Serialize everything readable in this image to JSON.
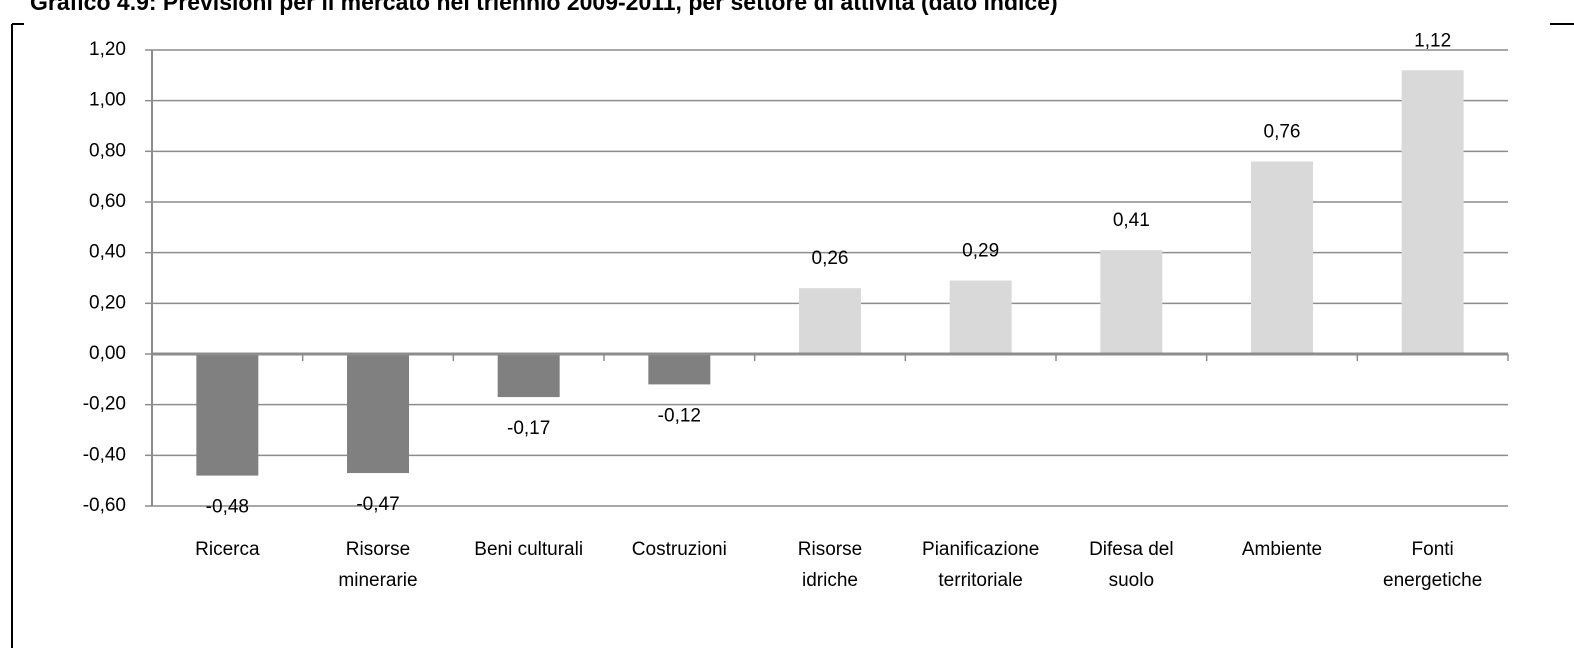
{
  "chart_data": {
    "type": "bar",
    "title": "Grafico 4.9: Previsioni per il mercato nel triennio 2009-2011, per settore di attività (dato indice)",
    "categories": [
      "Ricerca",
      "Risorse\nminerarie",
      "Beni culturali",
      "Costruzioni",
      "Risorse\nidriche",
      "Pianificazione\nterritoriale",
      "Difesa del\nsuolo",
      "Ambiente",
      "Fonti\nenergetiche"
    ],
    "values": [
      -0.48,
      -0.47,
      -0.17,
      -0.12,
      0.26,
      0.29,
      0.41,
      0.76,
      1.12
    ],
    "value_labels": [
      "-0,48",
      "-0,47",
      "-0,17",
      "-0,12",
      "0,26",
      "0,29",
      "0,41",
      "0,76",
      "1,12"
    ],
    "colors": [
      "#808080",
      "#808080",
      "#808080",
      "#808080",
      "#d9d9d9",
      "#d9d9d9",
      "#d9d9d9",
      "#d9d9d9",
      "#d9d9d9"
    ],
    "ylim": [
      -0.6,
      1.2
    ],
    "yticks": [
      {
        "value": -0.6,
        "label": "-0,60"
      },
      {
        "value": -0.4,
        "label": "-0,40"
      },
      {
        "value": -0.2,
        "label": "-0,20"
      },
      {
        "value": 0,
        "label": "0,00"
      },
      {
        "value": 0.2,
        "label": "0,20"
      },
      {
        "value": 0.4,
        "label": "0,40"
      },
      {
        "value": 0.6,
        "label": "0,60"
      },
      {
        "value": 0.8,
        "label": "0,80"
      },
      {
        "value": 1,
        "label": "1,00"
      },
      {
        "value": 1.2,
        "label": "1,20"
      }
    ],
    "grid": true
  }
}
